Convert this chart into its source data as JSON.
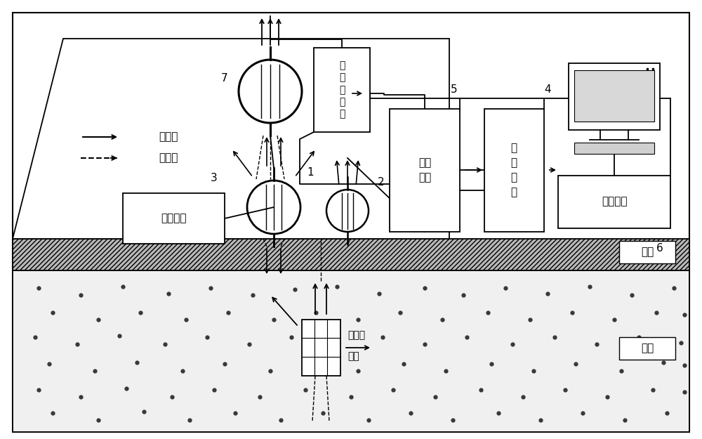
{
  "bg_color": "#ffffff",
  "lc": "#000000",
  "soil_facecolor": "#c0c0c0",
  "rock_facecolor": "#f5f5f5",
  "dot_color": "#333333",
  "labels": {
    "tx_field": "发射场",
    "rx_field": "接收场",
    "tx_circuit": "发射电路",
    "precision_meter": "精\n密\n电\n位\n器",
    "rx_circuit": "接收\n电路",
    "signal_acq": "信\n号\n采\n集",
    "data_proc": "数据处理",
    "conductor": "导体块",
    "eddy": "涡流",
    "soil": "土壤",
    "rock": "围岩",
    "n1": "1",
    "n2": "2",
    "n3": "3",
    "n4": "4",
    "n5": "5",
    "n6": "6",
    "n7": "7"
  },
  "fs": 11,
  "fs_small": 10
}
